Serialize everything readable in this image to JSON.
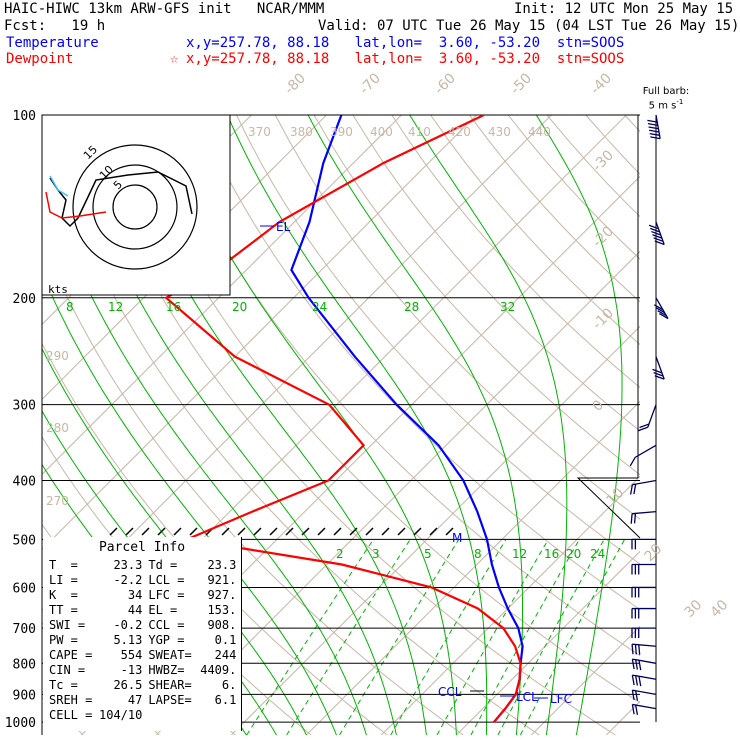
{
  "header": {
    "line1_left": "HAIC-HIWC 13km ARW-GFS init   NCAR/MMM",
    "line1_right": "Init: 12 UTC Mon 25 May 15",
    "line2_left": "Fcst:   19 h",
    "line2_right": "Valid: 07 UTC Tue 26 May 15 (04 LST Tue 26 May 15)",
    "temperature_label": "Temperature",
    "temperature_info": "x,y=257.78, 88.18   lat,lon=  3.60, -53.20  stn=SOOS",
    "dewpoint_label": "Dewpoint",
    "dewpoint_info": "x,y=257.78, 88.18   lat,lon=  3.60, -53.20  stn=SOOS",
    "dewpoint_marker": "☆"
  },
  "barb_label": "Full barb:",
  "barb_unit": "5 m s",
  "hodograph": {
    "units": "kts",
    "rings": [
      "5",
      "10",
      "15"
    ],
    "speed_labels": [
      "8",
      "12",
      "16",
      "20"
    ]
  },
  "parcel": {
    "title": "Parcel Info",
    "rows": [
      [
        "T  =",
        "23.3",
        "Td =",
        "23.3"
      ],
      [
        "LI =",
        "-2.2",
        "LCL =",
        "921."
      ],
      [
        "K  =",
        "34",
        "LFC =",
        "927."
      ],
      [
        "TT =",
        "44",
        "EL =",
        "153."
      ],
      [
        "SWI =",
        "-0.2",
        "CCL =",
        "908."
      ],
      [
        "PW =",
        "5.13",
        "YGP =",
        "0.1"
      ],
      [
        "CAPE =",
        "554",
        "SWEAT=",
        "244"
      ],
      [
        "CIN =",
        "-13",
        "HWBZ=",
        "4409."
      ],
      [
        "Tc =",
        "26.5",
        "SHEAR=",
        "6."
      ],
      [
        "SREH =",
        "47",
        "LAPSE=",
        "6.1"
      ],
      [
        "CELL =",
        "104/10",
        "",
        ""
      ]
    ]
  },
  "chart_data": {
    "type": "skew-T log-P",
    "pressure_levels": [
      100,
      200,
      300,
      400,
      500,
      600,
      700,
      800,
      900,
      1000
    ],
    "pressure_labels": [
      "100",
      "200",
      "300",
      "400",
      "500",
      "600",
      "700",
      "800",
      "900",
      "1000"
    ],
    "isotherm_labels": [
      "-80",
      "-70",
      "-60",
      "-50",
      "-40",
      "-30",
      "-20",
      "-10",
      "0",
      "10",
      "20",
      "30",
      "40"
    ],
    "theta_labels": [
      "370",
      "380",
      "390",
      "400",
      "410",
      "420",
      "430",
      "440",
      "290",
      "280",
      "270"
    ],
    "mixing_ratio_labels": [
      "2",
      "3",
      "5",
      "8",
      "12",
      "16",
      "20",
      "24"
    ],
    "theta_e_labels": [
      "8",
      "12",
      "16",
      "20",
      "24",
      "28",
      "32"
    ],
    "level_markers": [
      "EL",
      "M",
      "CCL",
      "LCL",
      "LFC"
    ],
    "series": [
      {
        "name": "Temperature",
        "color": "#0000ff",
        "points": [
          [
            100,
            -78
          ],
          [
            120,
            -74
          ],
          [
            150,
            -68
          ],
          [
            180,
            -64
          ],
          [
            200,
            -58
          ],
          [
            250,
            -44
          ],
          [
            300,
            -32
          ],
          [
            350,
            -21
          ],
          [
            400,
            -13
          ],
          [
            450,
            -7
          ],
          [
            500,
            -2
          ],
          [
            550,
            2
          ],
          [
            600,
            6
          ],
          [
            650,
            10
          ],
          [
            700,
            14
          ],
          [
            750,
            17
          ],
          [
            800,
            19
          ],
          [
            850,
            21
          ],
          [
            900,
            22.5
          ],
          [
            950,
            23
          ],
          [
            1000,
            23.3
          ]
        ]
      },
      {
        "name": "Dewpoint",
        "color": "#ff0000",
        "points": [
          [
            100,
            -59
          ],
          [
            120,
            -66
          ],
          [
            150,
            -72
          ],
          [
            180,
            -74
          ],
          [
            200,
            -77
          ],
          [
            250,
            -60
          ],
          [
            300,
            -41
          ],
          [
            350,
            -31
          ],
          [
            400,
            -31
          ],
          [
            450,
            -37
          ],
          [
            500,
            -42
          ],
          [
            550,
            -18
          ],
          [
            600,
            -3
          ],
          [
            650,
            6
          ],
          [
            700,
            12
          ],
          [
            750,
            16
          ],
          [
            800,
            19
          ],
          [
            850,
            21
          ],
          [
            900,
            22.5
          ],
          [
            950,
            23
          ],
          [
            1000,
            23.3
          ]
        ]
      }
    ],
    "wind_barbs": [
      [
        100,
        30,
        190
      ],
      [
        150,
        30,
        200
      ],
      [
        200,
        20,
        210
      ],
      [
        250,
        15,
        200
      ],
      [
        300,
        10,
        160
      ],
      [
        350,
        5,
        120
      ],
      [
        400,
        10,
        100
      ],
      [
        450,
        10,
        95
      ],
      [
        500,
        10,
        90
      ],
      [
        550,
        15,
        90
      ],
      [
        600,
        15,
        90
      ],
      [
        650,
        15,
        90
      ],
      [
        700,
        15,
        90
      ],
      [
        750,
        15,
        85
      ],
      [
        800,
        15,
        80
      ],
      [
        850,
        15,
        80
      ],
      [
        900,
        10,
        80
      ],
      [
        950,
        10,
        80
      ]
    ]
  },
  "colors": {
    "isobar": "#000000",
    "isotherm": "#c8b7a6",
    "dry_adiabat": "#c8b7a6",
    "moist_adiabat": "#00b400",
    "mixing_ratio": "#00b400",
    "temperature": "#0000ff",
    "dewpoint": "#ff0000"
  }
}
